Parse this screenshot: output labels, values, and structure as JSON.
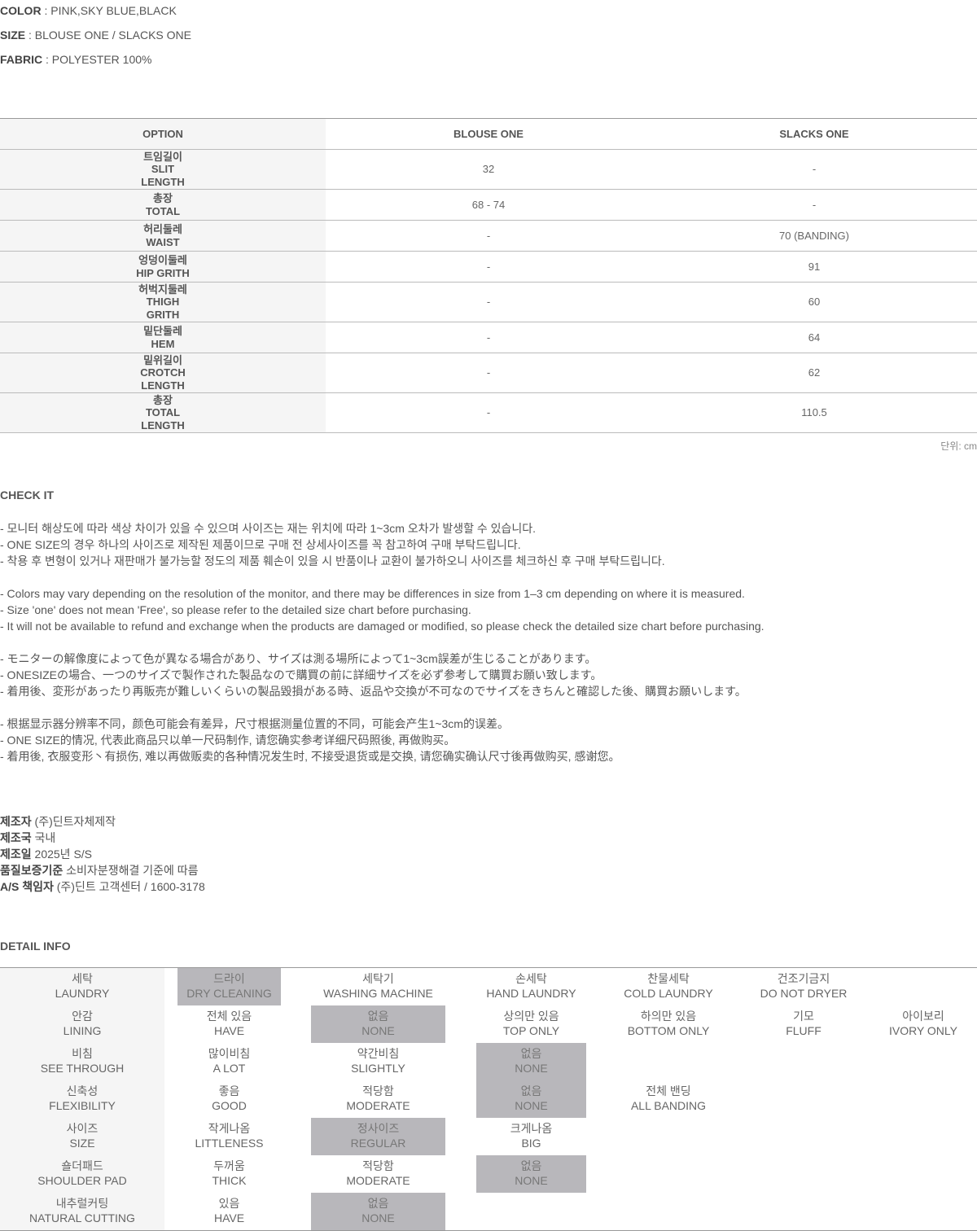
{
  "specs": [
    {
      "label": "COLOR",
      "value": " : PINK,SKY BLUE,BLACK"
    },
    {
      "label": "SIZE",
      "value": " : BLOUSE ONE / SLACKS ONE"
    },
    {
      "label": "FABRIC",
      "value": " : POLYESTER 100%"
    }
  ],
  "size_table": {
    "headers": [
      "OPTION",
      "BLOUSE ONE",
      "SLACKS ONE"
    ],
    "rows": [
      {
        "label": [
          "트임길이",
          "SLIT",
          "LENGTH"
        ],
        "blouse": "32",
        "slacks": "-"
      },
      {
        "label": [
          "총장",
          "TOTAL"
        ],
        "blouse": "68 - 74",
        "slacks": "-"
      },
      {
        "label": [
          "허리둘레",
          "WAIST"
        ],
        "blouse": "-",
        "slacks": "70 (BANDING)"
      },
      {
        "label": [
          "엉덩이둘레",
          "HIP GRITH"
        ],
        "blouse": "-",
        "slacks": "91"
      },
      {
        "label": [
          "허벅지둘레",
          "THIGH",
          "GRITH"
        ],
        "blouse": "-",
        "slacks": "60"
      },
      {
        "label": [
          "밑단둘레",
          "HEM"
        ],
        "blouse": "-",
        "slacks": "64"
      },
      {
        "label": [
          "밑위길이",
          "CROTCH",
          "LENGTH"
        ],
        "blouse": "-",
        "slacks": "62"
      },
      {
        "label": [
          "총장",
          "TOTAL",
          "LENGTH"
        ],
        "blouse": "-",
        "slacks": "110.5"
      }
    ],
    "unit": "단위: cm"
  },
  "check_it": {
    "title": "CHECK IT",
    "lines": [
      "- 모니터 해상도에 따라 색상 차이가 있을 수 있으며 사이즈는 재는 위치에 따라 1~3cm 오차가 발생할 수 있습니다.",
      "- ONE SIZE의 경우 하나의 사이즈로 제작된 제품이므로 구매 전 상세사이즈를 꼭 참고하여 구매 부탁드립니다.",
      "- 착용 후 변형이 있거나 재판매가 불가능할 정도의 제품 훼손이 있을 시 반품이나 교환이 불가하오니 사이즈를 체크하신 후 구매 부탁드립니다.",
      "",
      "- Colors may vary depending on the resolution of the monitor, and there may be differences in size from 1–3 cm depending on where it is measured.",
      "- Size 'one' does not mean 'Free', so please refer to the detailed size chart before purchasing.",
      "- It will not be available to refund and exchange when the products are damaged or modified, so please check the detailed size chart before purchasing.",
      "",
      "- モニターの解像度によって色が異なる場合があり、サイズは測る場所によって1~3cm誤差が生じることがあります。",
      "- ONESIZEの場合、一つのサイズで製作された製品なので購買の前に詳細サイズを必ず参考して購買お願い致します。",
      "- 着用後、変形があったり再販売が難しいくらいの製品毀損がある時、返品や交換が不可なのでサイズをきちんと確認した後、購買お願いします。",
      "",
      "- 根据显示器分辨率不同，颜色可能会有差异，尺寸根据测量位置的不同，可能会产生1~3cm的误差。",
      "- ONE SIZE的情况, 代表此商品只以单一尺码制作, 请您确实参考详细尺码照後, 再做购买。",
      "- 着用後, 衣服变形丶有损伤, 难以再做贩卖的各种情况发生时, 不接受退货或是交换, 请您确实确认尺寸後再做购买, 感谢您。"
    ]
  },
  "maker": [
    {
      "label": "제조자",
      "value": " (주)딘트자체제작"
    },
    {
      "label": "제조국",
      "value": " 국내"
    },
    {
      "label": "제조일",
      "value": " 2025년 S/S"
    },
    {
      "label": "품질보증기준",
      "value": " 소비자분쟁해결 기준에 따름"
    },
    {
      "label": "A/S 책임자",
      "value": " (주)딘트 고객센터 / 1600-3178"
    }
  ],
  "detail_info": {
    "title": "DETAIL INFO",
    "highlight_color": "#b8b7bb",
    "rows": [
      {
        "label": [
          "세탁",
          "LAUNDRY"
        ],
        "options": [
          [
            "드라이",
            "DRY CLEANING",
            true
          ],
          [
            "세탁기",
            "WASHING MACHINE",
            false
          ],
          [
            "손세탁",
            "HAND LAUNDRY",
            false
          ],
          [
            "찬물세탁",
            "COLD LAUNDRY",
            false
          ],
          [
            "건조기금지",
            "DO NOT DRYER",
            false
          ]
        ]
      },
      {
        "label": [
          "안감",
          "LINING"
        ],
        "options": [
          [
            "전체 있음",
            "HAVE",
            false
          ],
          [
            "없음",
            "NONE",
            true
          ],
          [
            "상의만 있음",
            "TOP ONLY",
            false
          ],
          [
            "하의만 있음",
            "BOTTOM ONLY",
            false
          ],
          [
            "기모",
            "FLUFF",
            false
          ],
          [
            "아이보리",
            "IVORY ONLY",
            false
          ]
        ]
      },
      {
        "label": [
          "비침",
          "SEE THROUGH"
        ],
        "options": [
          [
            "많이비침",
            "A LOT",
            false
          ],
          [
            "약간비침",
            "SLIGHTLY",
            false
          ],
          [
            "없음",
            "NONE",
            true
          ]
        ]
      },
      {
        "label": [
          "신축성",
          "FLEXIBILITY"
        ],
        "options": [
          [
            "좋음",
            "GOOD",
            false
          ],
          [
            "적당함",
            "MODERATE",
            false
          ],
          [
            "없음",
            "NONE",
            true
          ],
          [
            "전체 밴딩",
            "ALL BANDING",
            false
          ]
        ]
      },
      {
        "label": [
          "사이즈",
          "SIZE"
        ],
        "options": [
          [
            "작게나옴",
            "LITTLENESS",
            false
          ],
          [
            "정사이즈",
            "REGULAR",
            true
          ],
          [
            "크게나옴",
            "BIG",
            false
          ]
        ]
      },
      {
        "label": [
          "숄더패드",
          "SHOULDER PAD"
        ],
        "options": [
          [
            "두꺼움",
            "THICK",
            false
          ],
          [
            "적당함",
            "MODERATE",
            false
          ],
          [
            "없음",
            "NONE",
            true
          ]
        ]
      },
      {
        "label": [
          "내추럴커팅",
          "NATURAL CUTTING"
        ],
        "options": [
          [
            "있음",
            "HAVE",
            false
          ],
          [
            "없음",
            "NONE",
            true
          ]
        ]
      }
    ]
  }
}
